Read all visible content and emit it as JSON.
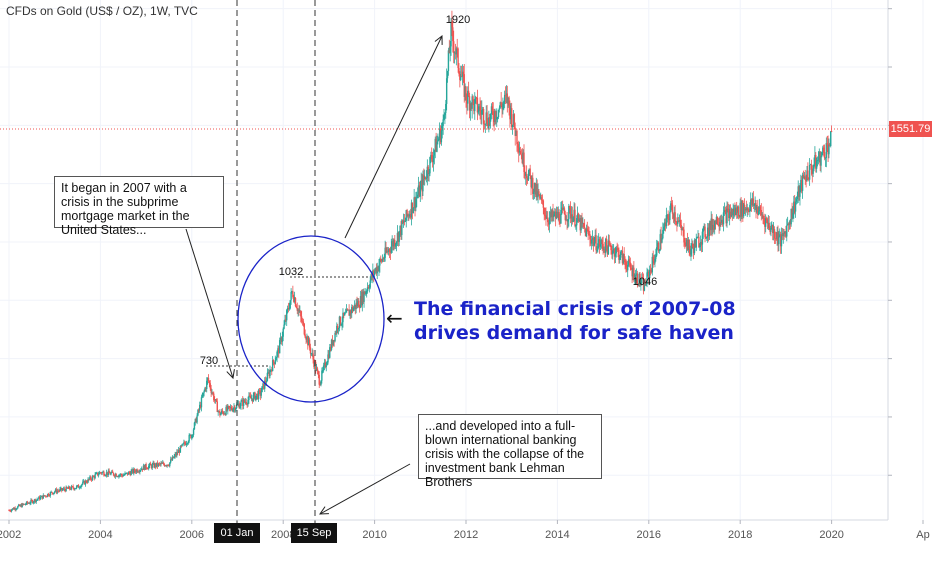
{
  "title": "CFDs on Gold (US$ / OZ), 1W, TVC",
  "last_price_label": "1551.79",
  "colors": {
    "up": "#26a69a",
    "down": "#ef5350",
    "circle": "#1a23c8",
    "annotation_text": "#1a23c8",
    "price_line": "#ef5350"
  },
  "chart_data": {
    "type": "line",
    "x_ticks": [
      "2002",
      "2004",
      "2006",
      "2008",
      "2010",
      "2012",
      "2014",
      "2016",
      "2018",
      "2020",
      "Ap"
    ],
    "xlim": [
      2002,
      2020.6
    ],
    "ylim": [
      250,
      2050
    ],
    "series": [
      {
        "x": [
          2002.0,
          2002.5,
          2003.0,
          2003.5,
          2004.0,
          2004.5,
          2005.0,
          2005.5,
          2006.0,
          2006.35,
          2006.6,
          2007.0,
          2007.5,
          2007.9,
          2008.2,
          2008.5,
          2008.8,
          2009.2,
          2009.7,
          2010.0,
          2010.5,
          2011.0,
          2011.5,
          2011.67,
          2012.0,
          2012.5,
          2012.9,
          2013.3,
          2013.8,
          2014.3,
          2014.8,
          2015.3,
          2015.9,
          2016.5,
          2016.9,
          2017.5,
          2018.3,
          2018.9,
          2019.4,
          2019.8,
          2020.0
        ],
        "y": [
          280,
          310,
          345,
          360,
          410,
          400,
          430,
          440,
          540,
          730,
          610,
          640,
          680,
          830,
          1032,
          880,
          720,
          920,
          1000,
          1100,
          1220,
          1380,
          1600,
          1920,
          1700,
          1620,
          1690,
          1450,
          1280,
          1300,
          1200,
          1170,
          1046,
          1320,
          1170,
          1280,
          1330,
          1200,
          1420,
          1500,
          1551.79
        ]
      }
    ],
    "annotations": {
      "peak_label": "1920",
      "high_2008_label": "1032",
      "high_2006_label": "730",
      "low_label": "1046",
      "marker_dates": [
        "01 Jan '07",
        "15 Sep '08"
      ],
      "headline": [
        "The financial crisis of 2007-08",
        "drives demand for safe haven"
      ],
      "note_top": "It began in 2007 with a crisis in the subprime mortgage market in the United States...",
      "note_bottom": "...and developed into a full-blown international banking crisis with the collapse of the investment bank Lehman Brothers"
    }
  }
}
